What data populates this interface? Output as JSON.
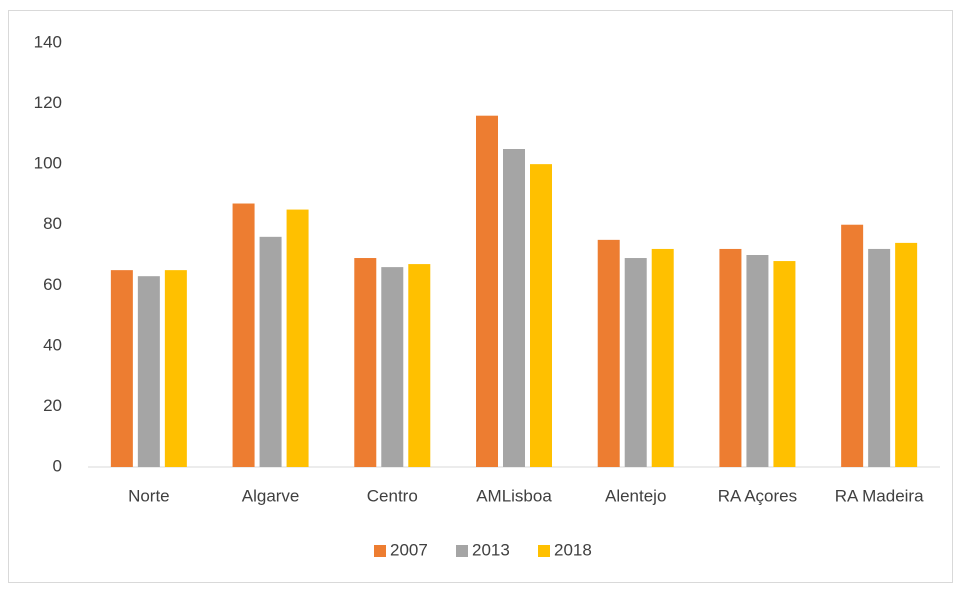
{
  "chart_data": {
    "type": "bar",
    "categories": [
      "Norte",
      "Algarve",
      "Centro",
      "AMLisboa",
      "Alentejo",
      "RA Açores",
      "RA Madeira"
    ],
    "series": [
      {
        "name": "2007",
        "color": "#ed7d31",
        "values": [
          65,
          87,
          69,
          116,
          75,
          72,
          80
        ]
      },
      {
        "name": "2013",
        "color": "#a5a5a5",
        "values": [
          63,
          76,
          66,
          105,
          69,
          70,
          72
        ]
      },
      {
        "name": "2018",
        "color": "#ffc000",
        "values": [
          65,
          85,
          67,
          100,
          72,
          68,
          74
        ]
      }
    ],
    "ylim": [
      0,
      140
    ],
    "yticks": [
      0,
      20,
      40,
      60,
      80,
      100,
      120,
      140
    ],
    "grid": false,
    "legend": "bottom"
  }
}
